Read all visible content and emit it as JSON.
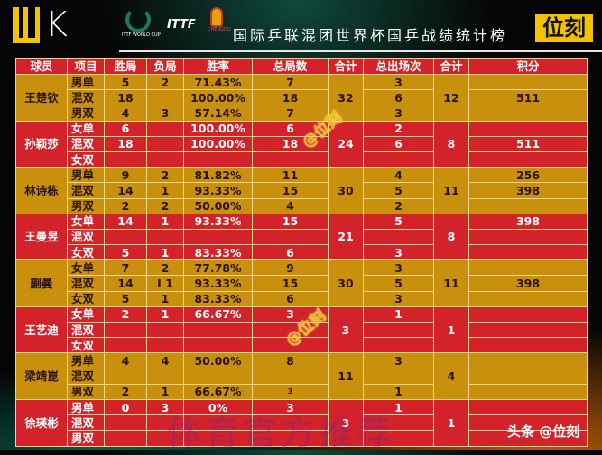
{
  "header": {
    "logo_text": "WK",
    "world_cup_logo": "ITTF WORLD CUP",
    "ittf_logo": "ITTF",
    "chengdu_logo": "CHENGDU",
    "title": "国际乒联混团世界杯国乒战绩统计榜",
    "badge": "位刻"
  },
  "table": {
    "columns": [
      "球员",
      "项目",
      "胜局",
      "负局",
      "胜率",
      "总局数",
      "合计",
      "总出场次",
      "合计",
      "积分"
    ],
    "players": [
      {
        "name": "王楚钦",
        "color": "gold",
        "games_total": "32",
        "appearances_total": "12",
        "rows": [
          {
            "event": "男单",
            "won": "5",
            "lost": "2",
            "rate": "71.43%",
            "games": "7",
            "apps": "3",
            "points": ""
          },
          {
            "event": "混双",
            "won": "18",
            "lost": "",
            "rate": "100.00%",
            "games": "18",
            "apps": "6",
            "points": "511"
          },
          {
            "event": "男双",
            "won": "4",
            "lost": "3",
            "rate": "57.14%",
            "games": "7",
            "apps": "3",
            "points": ""
          }
        ]
      },
      {
        "name": "孙颖莎",
        "color": "red",
        "games_total": "24",
        "appearances_total": "8",
        "rows": [
          {
            "event": "女单",
            "won": "6",
            "lost": "",
            "rate": "100.00%",
            "games": "6",
            "apps": "2",
            "points": ""
          },
          {
            "event": "混双",
            "won": "18",
            "lost": "",
            "rate": "100.00%",
            "games": "18",
            "apps": "6",
            "points": "511"
          },
          {
            "event": "女双",
            "won": "",
            "lost": "",
            "rate": "",
            "games": "",
            "apps": "",
            "points": ""
          }
        ]
      },
      {
        "name": "林诗栋",
        "color": "gold",
        "games_total": "30",
        "appearances_total": "11",
        "rows": [
          {
            "event": "男单",
            "won": "9",
            "lost": "2",
            "rate": "81.82%",
            "games": "11",
            "apps": "4",
            "points": "256"
          },
          {
            "event": "混双",
            "won": "14",
            "lost": "1",
            "rate": "93.33%",
            "games": "15",
            "apps": "5",
            "points": "398"
          },
          {
            "event": "男双",
            "won": "2",
            "lost": "2",
            "rate": "50.00%",
            "games": "4",
            "apps": "2",
            "points": ""
          }
        ]
      },
      {
        "name": "王曼昱",
        "color": "red",
        "games_total": "21",
        "appearances_total": "8",
        "rows": [
          {
            "event": "女单",
            "won": "14",
            "lost": "1",
            "rate": "93.33%",
            "games": "15",
            "apps": "5",
            "points": "398"
          },
          {
            "event": "混双",
            "won": "",
            "lost": "",
            "rate": "",
            "games": "",
            "apps": "",
            "points": ""
          },
          {
            "event": "女双",
            "won": "5",
            "lost": "1",
            "rate": "83.33%",
            "games": "6",
            "apps": "3",
            "points": ""
          }
        ]
      },
      {
        "name": "蒯曼",
        "color": "gold",
        "games_total": "30",
        "appearances_total": "11",
        "rows": [
          {
            "event": "女单",
            "won": "7",
            "lost": "2",
            "rate": "77.78%",
            "games": "9",
            "apps": "3",
            "points": ""
          },
          {
            "event": "混双",
            "won": "14",
            "lost": "I 1",
            "rate": "93.33%",
            "games": "15",
            "apps": "5",
            "points": "398"
          },
          {
            "event": "女双",
            "won": "5",
            "lost": "1",
            "rate": "83.33%",
            "games": "6",
            "apps": "3",
            "points": ""
          }
        ]
      },
      {
        "name": "王艺迪",
        "color": "red",
        "games_total": "3",
        "appearances_total": "1",
        "rows": [
          {
            "event": "女单",
            "won": "2",
            "lost": "1",
            "rate": "66.67%",
            "games": "3",
            "apps": "1",
            "points": ""
          },
          {
            "event": "混双",
            "won": "",
            "lost": "",
            "rate": "",
            "games": "",
            "apps": "",
            "points": ""
          },
          {
            "event": "女双",
            "won": "",
            "lost": "",
            "rate": "",
            "games": "",
            "apps": "",
            "points": ""
          }
        ]
      },
      {
        "name": "梁靖崑",
        "color": "gold",
        "games_total": "11",
        "appearances_total": "4",
        "rows": [
          {
            "event": "男单",
            "won": "4",
            "lost": "4",
            "rate": "50.00%",
            "games": "8",
            "apps": "3",
            "points": ""
          },
          {
            "event": "混双",
            "won": "",
            "lost": "",
            "rate": "",
            "games": "",
            "apps": "",
            "points": ""
          },
          {
            "event": "男双",
            "won": "2",
            "lost": "1",
            "rate": "66.67%",
            "games": "3",
            "apps": "1",
            "points": "",
            "tiny_games": true
          }
        ]
      },
      {
        "name": "徐瑛彬",
        "color": "red",
        "games_total": "3",
        "appearances_total": "1",
        "rows": [
          {
            "event": "男单",
            "won": "0",
            "lost": "3",
            "rate": "0%",
            "games": "3",
            "apps": "1",
            "points": ""
          },
          {
            "event": "混双",
            "won": "",
            "lost": "",
            "rate": "",
            "games": "",
            "apps": "",
            "points": ""
          },
          {
            "event": "男双",
            "won": "",
            "lost": "",
            "rate": "",
            "games": "",
            "apps": "",
            "points": ""
          }
        ]
      }
    ]
  },
  "watermarks": {
    "handle": "@位刻",
    "faint": "体育官方推荐",
    "source": "头条 @位刻"
  },
  "colors": {
    "gold": "#c8900c",
    "red": "#d3222a",
    "accent": "#f2c200"
  }
}
